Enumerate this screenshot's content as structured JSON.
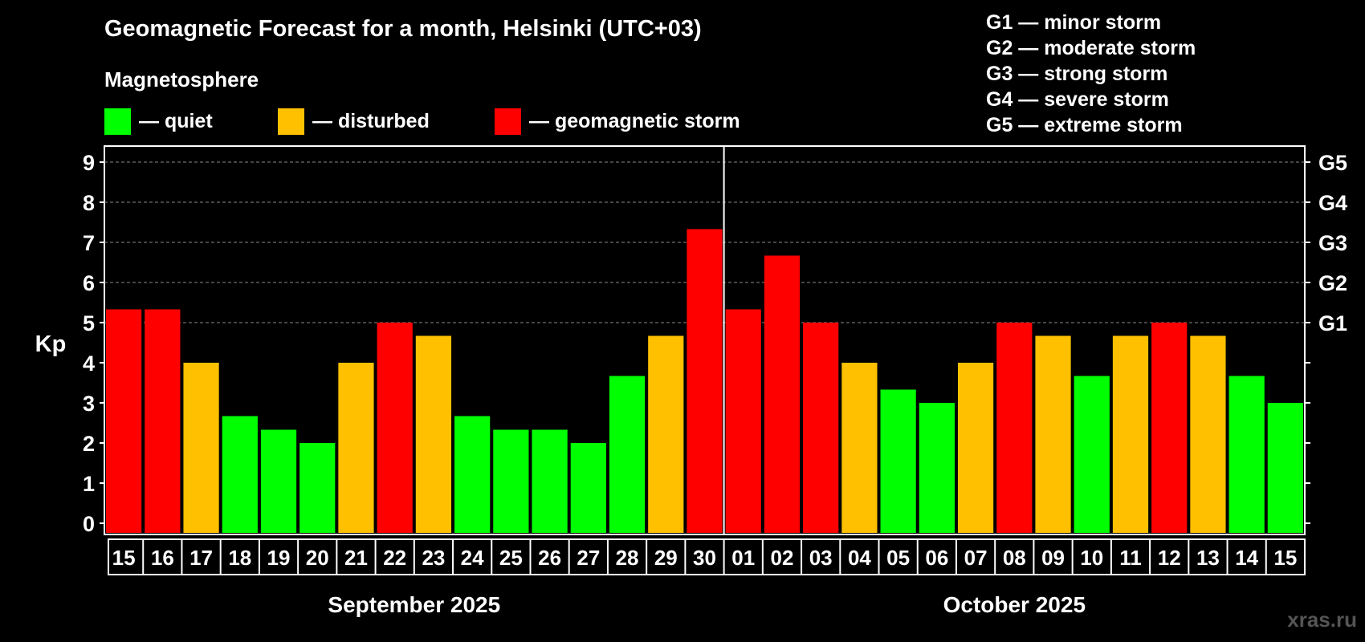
{
  "title": "Geomagnetic Forecast for a month, Helsinki (UTC+03)",
  "magnetosphere": {
    "label": "Magnetosphere",
    "items": [
      {
        "color": "#00ff00",
        "text": "— quiet"
      },
      {
        "color": "#ffc000",
        "text": "— disturbed"
      },
      {
        "color": "#ff0000",
        "text": "— geomagnetic storm"
      }
    ]
  },
  "storm_legend": [
    "G1 — minor storm",
    "G2 — moderate storm",
    "G3 — strong storm",
    "G4 — severe storm",
    "G5 — extreme storm"
  ],
  "watermark": "xras.ru",
  "chart_data": {
    "type": "bar",
    "ylabel": "Kp",
    "ylim": [
      0,
      9
    ],
    "yticks": [
      "0",
      "1",
      "2",
      "3",
      "4",
      "5",
      "6",
      "7",
      "8",
      "9"
    ],
    "right_labels": [
      {
        "value": 5,
        "label": "G1"
      },
      {
        "value": 6,
        "label": "G2"
      },
      {
        "value": 7,
        "label": "G3"
      },
      {
        "value": 8,
        "label": "G4"
      },
      {
        "value": 9,
        "label": "G5"
      }
    ],
    "grid": "dashed at Kp 5-9",
    "colors": {
      "quiet": "#00ff00",
      "disturbed": "#ffc000",
      "storm": "#ff0000"
    },
    "months": [
      {
        "label": "September 2025",
        "days": 16
      },
      {
        "label": "October 2025",
        "days": 15
      }
    ],
    "categories": [
      "15",
      "16",
      "17",
      "18",
      "19",
      "20",
      "21",
      "22",
      "23",
      "24",
      "25",
      "26",
      "27",
      "28",
      "29",
      "30",
      "01",
      "02",
      "03",
      "04",
      "05",
      "06",
      "07",
      "08",
      "09",
      "10",
      "11",
      "12",
      "13",
      "14",
      "15"
    ],
    "values": [
      5.33,
      5.33,
      4.0,
      2.67,
      2.33,
      2.0,
      4.0,
      5.0,
      4.67,
      2.67,
      2.33,
      2.33,
      2.0,
      3.67,
      4.67,
      7.33,
      5.33,
      6.67,
      5.0,
      4.0,
      3.33,
      3.0,
      4.0,
      5.0,
      4.67,
      3.67,
      4.67,
      5.0,
      4.67,
      3.67,
      3.0
    ],
    "levels": [
      "storm",
      "storm",
      "disturbed",
      "quiet",
      "quiet",
      "quiet",
      "disturbed",
      "storm",
      "disturbed",
      "quiet",
      "quiet",
      "quiet",
      "quiet",
      "quiet",
      "disturbed",
      "storm",
      "storm",
      "storm",
      "storm",
      "disturbed",
      "quiet",
      "quiet",
      "disturbed",
      "storm",
      "disturbed",
      "quiet",
      "disturbed",
      "storm",
      "disturbed",
      "quiet",
      "quiet"
    ]
  }
}
